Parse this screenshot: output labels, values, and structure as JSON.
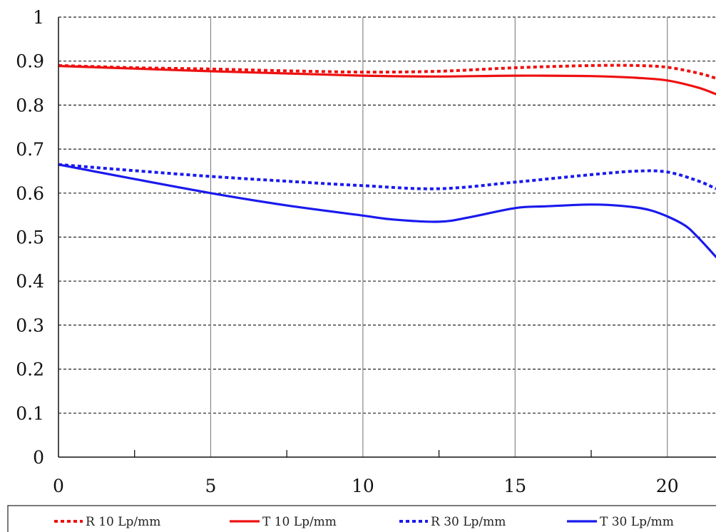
{
  "chart_data": {
    "type": "line",
    "title": "",
    "xlabel": "",
    "ylabel": "",
    "xlim": [
      0,
      21.6
    ],
    "ylim": [
      0,
      1
    ],
    "x_ticks": [
      0,
      5,
      10,
      15,
      20
    ],
    "x_tick_labels": [
      "0",
      "5",
      "10",
      "15",
      "20"
    ],
    "x_minor_ticks": [
      2.5,
      7.5,
      12.5,
      17.5
    ],
    "y_ticks": [
      0,
      0.1,
      0.2,
      0.3,
      0.4,
      0.5,
      0.6,
      0.7,
      0.8,
      0.9,
      1
    ],
    "y_tick_labels": [
      "0",
      "0.1",
      "0.2",
      "0.3",
      "0.4",
      "0.5",
      "0.6",
      "0.7",
      "0.8",
      "0.9",
      "1"
    ],
    "grid": {
      "vertical": "solid-gray",
      "horizontal": "dashed-black"
    },
    "legend_position": "bottom",
    "series": [
      {
        "name": "R 10 Lp/mm",
        "color": "#ee1111",
        "style": "dotted",
        "x": [
          0,
          2.5,
          5,
          7.5,
          10,
          12.5,
          15,
          17.5,
          19,
          20,
          21,
          21.6
        ],
        "y": [
          0.89,
          0.885,
          0.882,
          0.878,
          0.875,
          0.877,
          0.885,
          0.89,
          0.89,
          0.886,
          0.873,
          0.861
        ]
      },
      {
        "name": "T 10 Lp/mm",
        "color": "#ee1111",
        "style": "solid",
        "x": [
          0,
          2.5,
          5,
          7.5,
          10,
          12.5,
          15,
          17.5,
          19,
          20,
          21,
          21.6
        ],
        "y": [
          0.889,
          0.883,
          0.877,
          0.872,
          0.867,
          0.865,
          0.867,
          0.866,
          0.862,
          0.856,
          0.84,
          0.825
        ]
      },
      {
        "name": "R 30 Lp/mm",
        "color": "#1a1aee",
        "style": "dotted",
        "x": [
          0,
          2.5,
          5,
          7.5,
          10,
          12.5,
          15,
          17.5,
          19,
          20,
          21,
          21.6
        ],
        "y": [
          0.665,
          0.651,
          0.638,
          0.627,
          0.617,
          0.61,
          0.625,
          0.642,
          0.65,
          0.648,
          0.628,
          0.61
        ]
      },
      {
        "name": "T 30 Lp/mm",
        "color": "#1a1aee",
        "style": "solid",
        "x": [
          0,
          2.5,
          5,
          7.5,
          10,
          11,
          12.5,
          13.5,
          15,
          16,
          17.5,
          18.5,
          19.5,
          20.5,
          21,
          21.6
        ],
        "y": [
          0.665,
          0.632,
          0.6,
          0.572,
          0.549,
          0.54,
          0.535,
          0.545,
          0.566,
          0.57,
          0.574,
          0.571,
          0.56,
          0.53,
          0.5,
          0.455
        ]
      }
    ]
  }
}
